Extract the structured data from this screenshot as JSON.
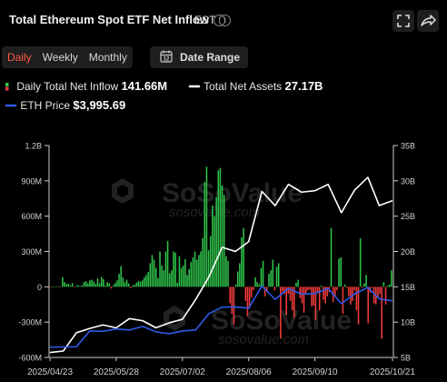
{
  "header": {
    "title": "Total Ethereum Spot ETF Net Inflow",
    "timezone": "EST",
    "info_glyph": "i",
    "fullscreen_icon": "fullscreen-icon",
    "share_icon": "share-icon"
  },
  "tabs": [
    {
      "label": "Daily",
      "active": true
    },
    {
      "label": "Weekly",
      "active": false
    },
    {
      "label": "Monthly",
      "active": false
    }
  ],
  "date_range": {
    "label": "Date Range",
    "icon": "calendar-icon"
  },
  "legend": {
    "inflow": {
      "label": "Daily Total Net Inflow",
      "value": "141.66M"
    },
    "assets": {
      "label": "Total Net Assets",
      "value": "27.17B"
    },
    "eth": {
      "label": "ETH Price",
      "value": "$3,995.69"
    }
  },
  "watermark": {
    "brand": "SoSoValue",
    "url": "sosovalue.com"
  },
  "colors": {
    "positive": "#2fc24a",
    "negative": "#f23b3b",
    "assets_line": "#ffffff",
    "eth_line": "#2f5ae8",
    "active_tab": "#ff5a4a"
  },
  "chart_data": {
    "type": "bar",
    "x_ticks": [
      "2025/04/23",
      "2025/05/28",
      "2025/07/02",
      "2025/08/06",
      "2025/09/10",
      "2025/10/21"
    ],
    "left_axis_ticks": [
      "1.2B",
      "900M",
      "600M",
      "300M",
      "0",
      "-300M",
      "-600M"
    ],
    "right_axis_ticks": [
      "35B",
      "30B",
      "25B",
      "20B",
      "15B",
      "10B",
      "5B"
    ],
    "ylim_left": [
      -600000000,
      1200000000
    ],
    "ylim_right": [
      5000000000,
      35000000000
    ],
    "start_date": "2025-04-23",
    "end_date": "2025-10-21",
    "series": [
      {
        "name": "Daily Total Net Inflow",
        "type": "bar",
        "axis": "left",
        "unit": "M USD",
        "values": [
          -6,
          2,
          3,
          5,
          -2,
          4,
          80,
          40,
          22,
          28,
          12,
          32,
          -4,
          8,
          15,
          5,
          12,
          40,
          48,
          30,
          55,
          60,
          45,
          25,
          70,
          30,
          85,
          65,
          10,
          40,
          30,
          -15,
          12,
          32,
          55,
          110,
          175,
          80,
          40,
          60,
          28,
          -12,
          10,
          18,
          35,
          50,
          42,
          55,
          80,
          100,
          125,
          200,
          270,
          230,
          160,
          75,
          300,
          180,
          140,
          300,
          390,
          115,
          140,
          300,
          290,
          35,
          260,
          160,
          180,
          235,
          100,
          150,
          210,
          250,
          300,
          230,
          270,
          300,
          415,
          890,
          1020,
          310,
          430,
          690,
          600,
          760,
          990,
          1010,
          860,
          780,
          260,
          220,
          -140,
          -230,
          -320,
          20,
          130,
          200,
          420,
          500,
          -120,
          -250,
          -180,
          -90,
          -30,
          80,
          40,
          20,
          160,
          220,
          -80,
          -40,
          110,
          140,
          230,
          -30,
          170,
          200,
          -440,
          -40,
          -60,
          -240,
          -60,
          -120,
          -200,
          -260,
          35,
          60,
          -95,
          -140,
          -220,
          -60,
          -30,
          -25,
          -165,
          -160,
          -280,
          -55,
          -200,
          10,
          -110,
          -140,
          -80,
          -45,
          500,
          -130,
          -80,
          -30,
          240,
          250,
          -230,
          20,
          -10,
          -80,
          -150,
          -120,
          -30,
          -200,
          -320,
          410,
          -10,
          30,
          100,
          -310,
          -50,
          -10,
          -140,
          -150,
          -90,
          -60,
          -440,
          40,
          -150,
          10,
          20,
          140
        ]
      },
      {
        "name": "Total Net Assets",
        "type": "line",
        "axis": "right",
        "unit": "B USD",
        "x": [
          "2025-04-23",
          "2025-04-30",
          "2025-05-07",
          "2025-05-14",
          "2025-05-21",
          "2025-05-28",
          "2025-06-04",
          "2025-06-11",
          "2025-06-18",
          "2025-06-25",
          "2025-07-02",
          "2025-07-09",
          "2025-07-16",
          "2025-07-23",
          "2025-07-30",
          "2025-08-06",
          "2025-08-13",
          "2025-08-20",
          "2025-08-27",
          "2025-09-03",
          "2025-09-10",
          "2025-09-17",
          "2025-09-24",
          "2025-10-01",
          "2025-10-08",
          "2025-10-14",
          "2025-10-21"
        ],
        "values": [
          5.7,
          5.9,
          8.5,
          9.1,
          9.6,
          9.2,
          10.5,
          10.2,
          9.2,
          9.9,
          10.4,
          13.2,
          16.4,
          20.6,
          20.0,
          21.4,
          28.5,
          26.5,
          29.5,
          28.4,
          28.6,
          29.5,
          25.5,
          28.7,
          30.5,
          26.5,
          27.2
        ]
      },
      {
        "name": "ETH Price",
        "type": "line",
        "axis": "right",
        "unit": "USD",
        "x": [
          "2025-04-23",
          "2025-04-30",
          "2025-05-07",
          "2025-05-14",
          "2025-05-21",
          "2025-05-28",
          "2025-06-04",
          "2025-06-11",
          "2025-06-18",
          "2025-06-25",
          "2025-07-02",
          "2025-07-09",
          "2025-07-16",
          "2025-07-23",
          "2025-07-30",
          "2025-08-06",
          "2025-08-13",
          "2025-08-20",
          "2025-08-27",
          "2025-09-03",
          "2025-09-10",
          "2025-09-17",
          "2025-09-24",
          "2025-10-01",
          "2025-10-08",
          "2025-10-14",
          "2025-10-21"
        ],
        "values": [
          1790,
          1800,
          1810,
          2560,
          2550,
          2660,
          2610,
          2780,
          2520,
          2430,
          2560,
          2610,
          3390,
          3700,
          3710,
          3650,
          4700,
          4070,
          4590,
          4320,
          4350,
          4590,
          3870,
          4330,
          4640,
          4090,
          3996
        ]
      }
    ],
    "legend_position": "top-left",
    "grid": false
  }
}
